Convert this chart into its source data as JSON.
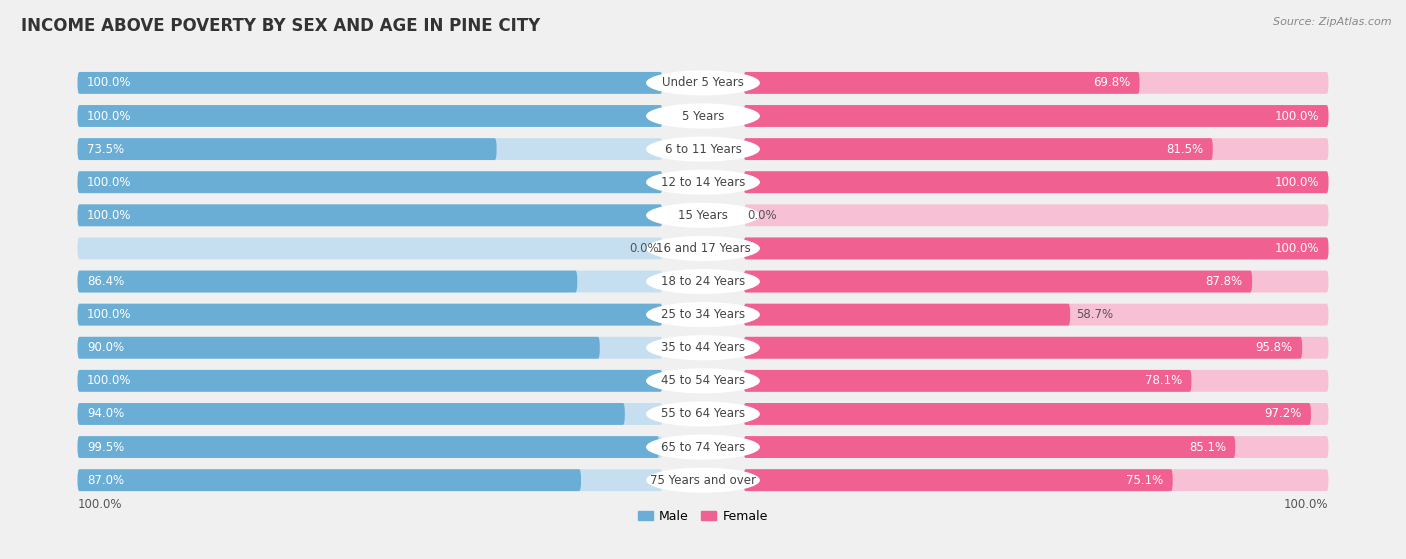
{
  "title": "INCOME ABOVE POVERTY BY SEX AND AGE IN PINE CITY",
  "source": "Source: ZipAtlas.com",
  "categories": [
    "Under 5 Years",
    "5 Years",
    "6 to 11 Years",
    "12 to 14 Years",
    "15 Years",
    "16 and 17 Years",
    "18 to 24 Years",
    "25 to 34 Years",
    "35 to 44 Years",
    "45 to 54 Years",
    "55 to 64 Years",
    "65 to 74 Years",
    "75 Years and over"
  ],
  "male_values": [
    100.0,
    100.0,
    73.5,
    100.0,
    100.0,
    0.0,
    86.4,
    100.0,
    90.0,
    100.0,
    94.0,
    99.5,
    87.0
  ],
  "female_values": [
    69.8,
    100.0,
    81.5,
    100.0,
    0.0,
    100.0,
    87.8,
    58.7,
    95.8,
    78.1,
    97.2,
    85.1,
    75.1
  ],
  "male_color": "#6aaed6",
  "female_color": "#f06090",
  "male_light_color": "#c5dff0",
  "female_light_color": "#f8c0d5",
  "bg_color": "#f0f0f0",
  "legend_male": "Male",
  "legend_female": "Female",
  "scale_label": "100.0%",
  "title_fontsize": 12,
  "label_fontsize": 8.5,
  "value_fontsize": 8.5
}
